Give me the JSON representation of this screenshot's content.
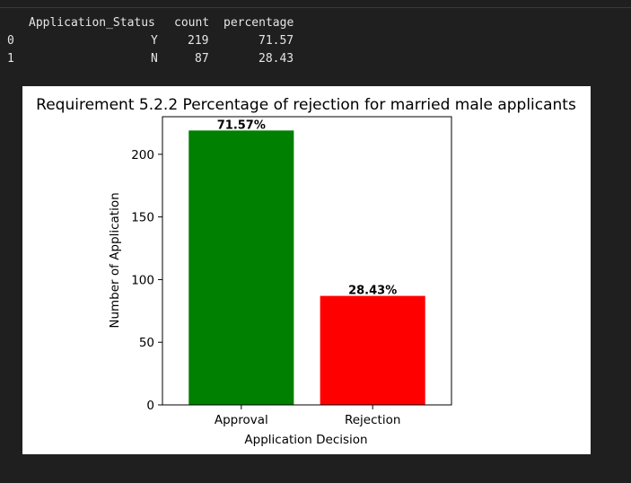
{
  "dataframe": {
    "index_header": "",
    "columns": [
      "Application_Status",
      "count",
      "percentage"
    ],
    "rows": [
      {
        "index": "0",
        "status": "Y",
        "count": "219",
        "percentage": "71.57"
      },
      {
        "index": "1",
        "status": "N",
        "count": "87",
        "percentage": "28.43"
      }
    ]
  },
  "chart_data": {
    "type": "bar",
    "title": "Requirement 5.2.2 Percentage of rejection for married male applicants",
    "xlabel": "Application Decision",
    "ylabel": "Number of Application",
    "categories": [
      "Approval",
      "Rejection"
    ],
    "values": [
      219,
      87
    ],
    "data_labels": [
      "71.57%",
      "28.43%"
    ],
    "colors": [
      "#008000",
      "#ff0000"
    ],
    "ylim": [
      0,
      230
    ],
    "yticks": [
      0,
      50,
      100,
      150,
      200
    ],
    "grid": false,
    "legend": "none"
  }
}
